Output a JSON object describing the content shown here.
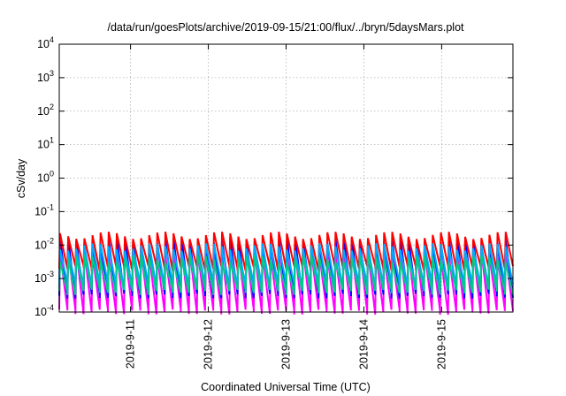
{
  "chart_data": {
    "type": "line",
    "title": "/data/run/goesPlots/archive/2019-09-15/21:00/flux/../bryn/5daysMars.plot",
    "xlabel": "Coordinated Universal Time (UTC)",
    "ylabel": "cSv/day",
    "y_scale": "log",
    "ylim": [
      0.0001,
      10000
    ],
    "xlim": [
      "2019-09-10 02:00",
      "2019-09-15 22:00"
    ],
    "x_ticks": [
      "2019-9-11",
      "2019-9-12",
      "2019-9-13",
      "2019-9-14",
      "2019-9-15"
    ],
    "y_ticks": [
      {
        "base": "10",
        "exp": "-4"
      },
      {
        "base": "10",
        "exp": "-3"
      },
      {
        "base": "10",
        "exp": "-2"
      },
      {
        "base": "10",
        "exp": "-1"
      },
      {
        "base": "10",
        "exp": "0"
      },
      {
        "base": "10",
        "exp": "1"
      },
      {
        "base": "10",
        "exp": "2"
      },
      {
        "base": "10",
        "exp": "3"
      },
      {
        "base": "10",
        "exp": "4"
      }
    ],
    "grid": true,
    "legend": "none",
    "sawtooth_period_hours": 2.5,
    "series": [
      {
        "color": "#ff00ff",
        "peak": 0.006,
        "trough": 0.0001
      },
      {
        "color": "#0000ff",
        "peak": 0.013,
        "trough": 0.0003
      },
      {
        "color": "#ff0000",
        "peak": 0.02,
        "trough": 0.002
      },
      {
        "color": "#00aaff",
        "peak": 0.009,
        "trough": 0.0006
      },
      {
        "color": "#00cc88",
        "peak": 0.004,
        "trough": 0.0004
      }
    ]
  }
}
